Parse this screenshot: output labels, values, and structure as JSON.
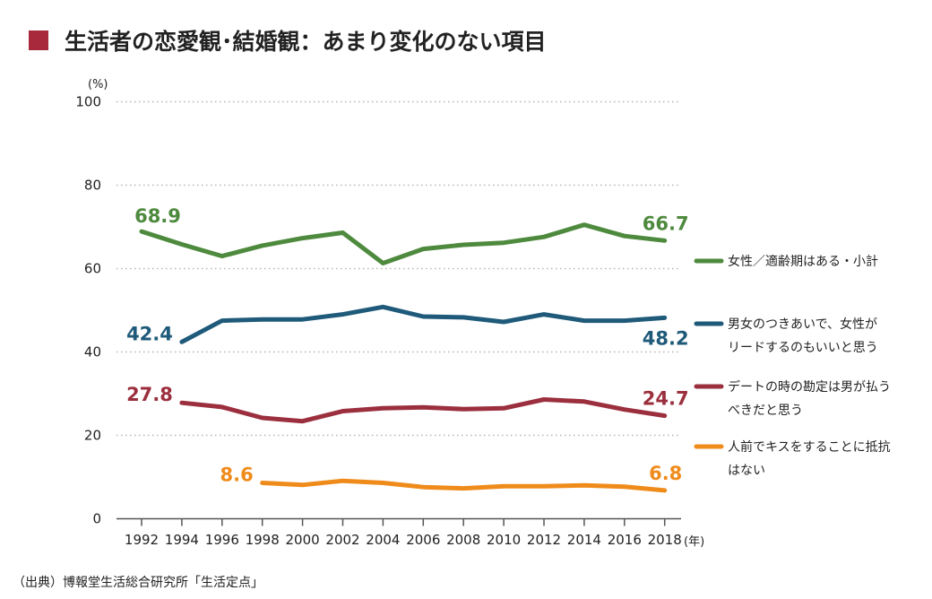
{
  "title": "生活者の恋愛観･結婚観：あまり変化のない項目",
  "source": "（出典）博報堂生活総合研究所「生活定点」",
  "colors": {
    "title_marker": "#a8283c",
    "axis": "#555555",
    "grid": "#b5b5b5"
  },
  "chart_data": {
    "type": "line",
    "yunit": "(%)",
    "xunit": "(年)",
    "ylim": [
      0,
      100
    ],
    "yticks": [
      0,
      20,
      40,
      60,
      80,
      100
    ],
    "x": [
      "1992",
      "1994",
      "1996",
      "1998",
      "2000",
      "2002",
      "2004",
      "2006",
      "2008",
      "2010",
      "2012",
      "2014",
      "2016",
      "2018"
    ],
    "grid": true,
    "legend_position": "right",
    "series": [
      {
        "name": "女性／適齢期はある・小計",
        "legend_lines": [
          "女性／適齢期はある・小計"
        ],
        "color": "#4e8a3e",
        "values": [
          68.9,
          65.8,
          63.0,
          65.5,
          67.3,
          68.6,
          61.3,
          64.7,
          65.7,
          66.2,
          67.6,
          70.5,
          67.8,
          66.7
        ],
        "first_label": "68.9",
        "last_label": "66.7"
      },
      {
        "name": "男女のつきあいで、女性がリードするのもいいと思う",
        "legend_lines": [
          "男女のつきあいで、女性が",
          "リードするのもいいと思う"
        ],
        "color": "#1f5a7a",
        "values": [
          null,
          42.4,
          47.5,
          47.8,
          47.8,
          49.0,
          50.8,
          48.5,
          48.3,
          47.2,
          49.0,
          47.5,
          47.5,
          48.2
        ],
        "first_label": "42.4",
        "last_label": "48.2"
      },
      {
        "name": "デートの時の勘定は男が払うべきだと思う",
        "legend_lines": [
          "デートの時の勘定は男が払う",
          "べきだと思う"
        ],
        "color": "#9b2f3e",
        "values": [
          null,
          27.8,
          26.8,
          24.2,
          23.4,
          25.8,
          26.5,
          26.7,
          26.3,
          26.5,
          28.6,
          28.1,
          26.2,
          24.7
        ],
        "first_label": "27.8",
        "last_label": "24.7"
      },
      {
        "name": "人前でキスをすることに抵抗はない",
        "legend_lines": [
          "人前でキスをすることに抵抗",
          "はない"
        ],
        "color": "#ef8b1b",
        "values": [
          null,
          null,
          null,
          8.6,
          8.1,
          9.1,
          8.6,
          7.6,
          7.3,
          7.8,
          7.8,
          8.0,
          7.7,
          6.8
        ],
        "first_label": "8.6",
        "last_label": "6.8"
      }
    ]
  }
}
